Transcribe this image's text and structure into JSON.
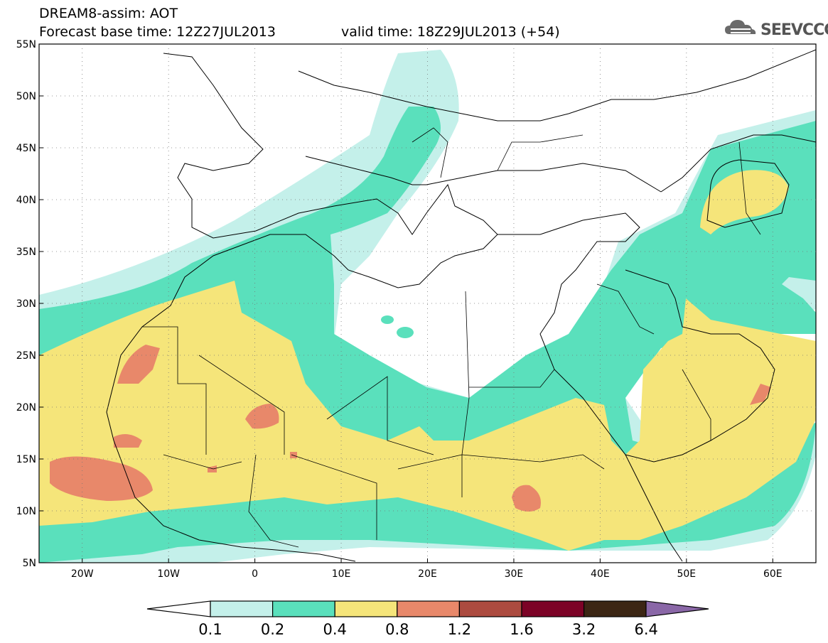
{
  "header": {
    "title_line1": "DREAM8-assim: AOT",
    "base_time": "Forecast base time: 12Z27JUL2013",
    "valid_time": "valid time: 18Z29JUL2013 (+54)",
    "logo_text": "SEEVCCC"
  },
  "map": {
    "projection": "lat-lon",
    "lon_range": [
      -25,
      65
    ],
    "lat_range": [
      5,
      55
    ],
    "lat_labels": [
      "55N",
      "50N",
      "45N",
      "40N",
      "35N",
      "30N",
      "25N",
      "20N",
      "15N",
      "10N",
      "5N"
    ],
    "lon_labels": [
      "20W",
      "10W",
      "0",
      "10E",
      "20E",
      "30E",
      "40E",
      "50E",
      "60E"
    ],
    "gridlines": "dotted"
  },
  "colorbar": {
    "labels": [
      "0.1",
      "0.2",
      "0.4",
      "0.8",
      "1.2",
      "1.6",
      "3.2",
      "6.4"
    ],
    "colors": [
      "#ffffff",
      "#c4f0ea",
      "#5ae0bc",
      "#f5e57a",
      "#e8886a",
      "#ac4b3f",
      "#7c0326",
      "#3c2614",
      "#8a67a7"
    ]
  }
}
